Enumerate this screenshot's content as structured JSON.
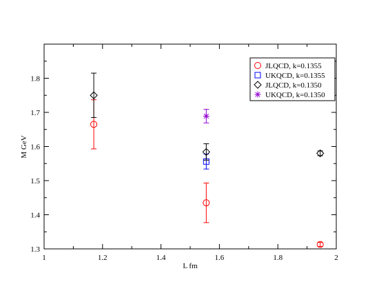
{
  "chart_data": {
    "type": "scatter",
    "title": "",
    "xlabel": "L  fm",
    "ylabel": "M GeV",
    "xlim": [
      1,
      2
    ],
    "ylim": [
      1.3,
      1.9
    ],
    "x_ticks": [
      1,
      1.2,
      1.4,
      1.6,
      1.8,
      2
    ],
    "x_tick_labels": [
      "1",
      "1.2",
      "1.4",
      "1.6",
      "1.8",
      "2"
    ],
    "y_ticks": [
      1.3,
      1.4,
      1.5,
      1.6,
      1.7,
      1.8
    ],
    "y_tick_labels": [
      "1.3",
      "1.4",
      "1.5",
      "1.6",
      "1.7",
      "1.8"
    ],
    "grid": false,
    "legend_position": "top-right",
    "series": [
      {
        "name": "JLQCD, k=0.1355",
        "marker": "circle",
        "color": "#ff0000",
        "points": [
          {
            "x": 1.17,
            "y": 1.665,
            "err": 0.072
          },
          {
            "x": 1.555,
            "y": 1.435,
            "err": 0.058
          },
          {
            "x": 1.945,
            "y": 1.313,
            "err": 0.006
          }
        ]
      },
      {
        "name": "UKQCD, k=0.1355",
        "marker": "square",
        "color": "#0000ff",
        "points": [
          {
            "x": 1.555,
            "y": 1.556,
            "err": 0.022
          }
        ]
      },
      {
        "name": "JLQCD, k=0.1350",
        "marker": "diamond",
        "color": "#000000",
        "points": [
          {
            "x": 1.17,
            "y": 1.75,
            "err": 0.065
          },
          {
            "x": 1.555,
            "y": 1.584,
            "err": 0.024
          },
          {
            "x": 1.945,
            "y": 1.58,
            "err": 0.007
          }
        ]
      },
      {
        "name": "UKQCD, k=0.1350",
        "marker": "star",
        "color": "#9400d3",
        "points": [
          {
            "x": 1.555,
            "y": 1.689,
            "err": 0.02
          }
        ]
      }
    ]
  }
}
